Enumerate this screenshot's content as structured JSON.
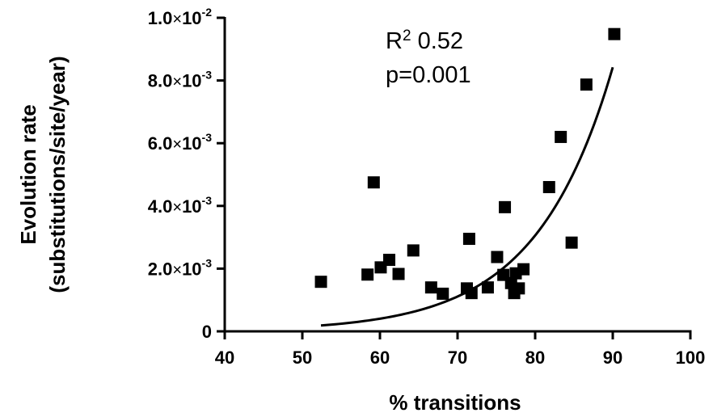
{
  "chart_data": {
    "type": "scatter",
    "xlabel": "% transitions",
    "ylabel_lines": [
      "Evolution rate",
      "(substitutions/site/year)"
    ],
    "xlim": [
      40,
      100
    ],
    "ylim": [
      0,
      0.01
    ],
    "x_ticks": [
      {
        "value": 40,
        "label": "40"
      },
      {
        "value": 50,
        "label": "50"
      },
      {
        "value": 60,
        "label": "60"
      },
      {
        "value": 70,
        "label": "70"
      },
      {
        "value": 80,
        "label": "80"
      },
      {
        "value": 90,
        "label": "90"
      },
      {
        "value": 100,
        "label": "100"
      }
    ],
    "y_ticks": [
      {
        "value": 0,
        "mantissa": "0",
        "exponent": ""
      },
      {
        "value": 0.002,
        "mantissa": "2.0",
        "exponent": "-3"
      },
      {
        "value": 0.004,
        "mantissa": "4.0",
        "exponent": "-3"
      },
      {
        "value": 0.006,
        "mantissa": "6.0",
        "exponent": "-3"
      },
      {
        "value": 0.008,
        "mantissa": "8.0",
        "exponent": "-3"
      },
      {
        "value": 0.01,
        "mantissa": "1.0",
        "exponent": "-2"
      }
    ],
    "tick_times": "×",
    "tick_base": "10",
    "annotations": {
      "r2_prefix": "R",
      "r2_sup": "2",
      "r2_value": " 0.52",
      "p_value": "p=0.001"
    },
    "points": [
      {
        "x": 52.4,
        "y": 0.00158
      },
      {
        "x": 58.4,
        "y": 0.00181
      },
      {
        "x": 59.2,
        "y": 0.00475
      },
      {
        "x": 60.1,
        "y": 0.00204
      },
      {
        "x": 61.2,
        "y": 0.00228
      },
      {
        "x": 62.4,
        "y": 0.00183
      },
      {
        "x": 64.3,
        "y": 0.00258
      },
      {
        "x": 66.6,
        "y": 0.0014
      },
      {
        "x": 68.1,
        "y": 0.0012
      },
      {
        "x": 71.2,
        "y": 0.00137
      },
      {
        "x": 71.5,
        "y": 0.00295
      },
      {
        "x": 71.8,
        "y": 0.00122
      },
      {
        "x": 73.9,
        "y": 0.0014
      },
      {
        "x": 75.1,
        "y": 0.00237
      },
      {
        "x": 75.9,
        "y": 0.0018
      },
      {
        "x": 76.1,
        "y": 0.00396
      },
      {
        "x": 76.9,
        "y": 0.00154
      },
      {
        "x": 77.3,
        "y": 0.00122
      },
      {
        "x": 77.5,
        "y": 0.00185
      },
      {
        "x": 77.9,
        "y": 0.00137
      },
      {
        "x": 78.5,
        "y": 0.00198
      },
      {
        "x": 81.8,
        "y": 0.0046
      },
      {
        "x": 83.3,
        "y": 0.0062
      },
      {
        "x": 84.7,
        "y": 0.00283
      },
      {
        "x": 86.6,
        "y": 0.00787
      },
      {
        "x": 90.2,
        "y": 0.00948
      }
    ],
    "fit_curve": {
      "type": "exponential",
      "x_range": [
        52.4,
        90.0
      ],
      "a": 9.245e-07,
      "b": 0.1013
    }
  }
}
